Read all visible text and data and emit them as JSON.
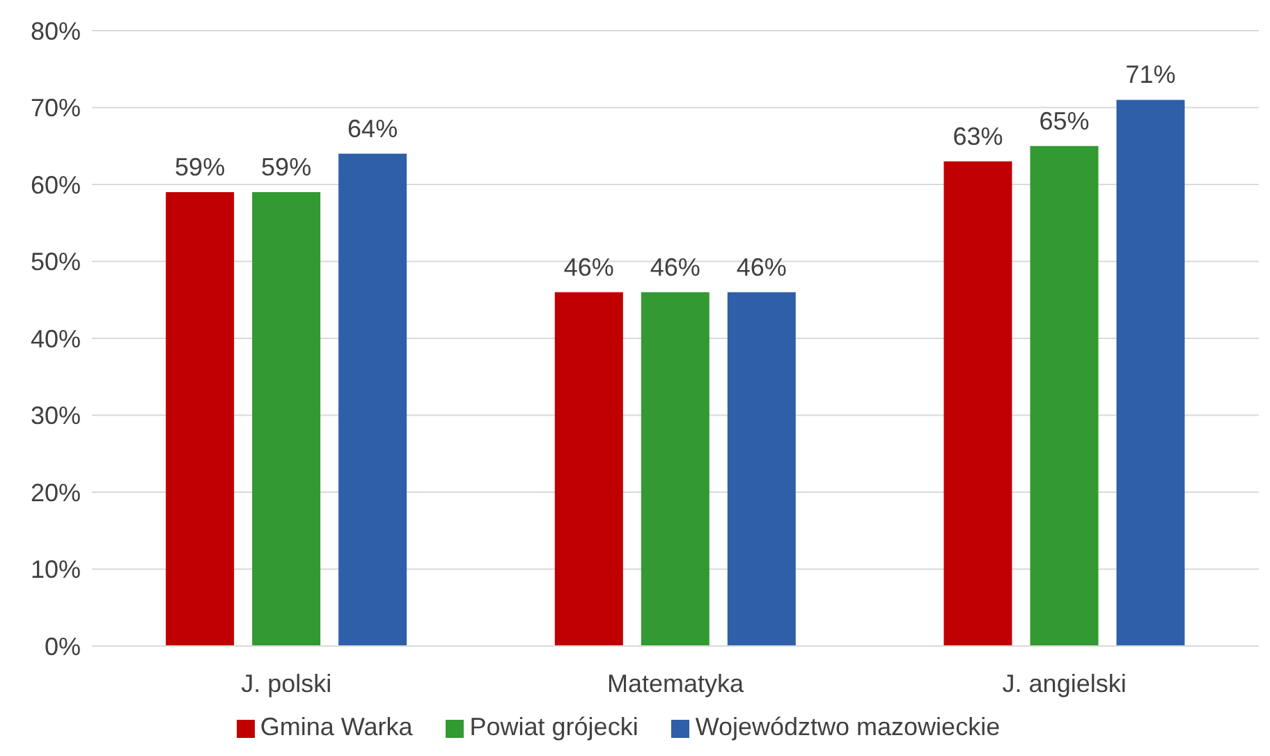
{
  "chart_data": {
    "type": "bar",
    "categories": [
      "J. polski",
      "Matematyka",
      "J. angielski"
    ],
    "series": [
      {
        "name": "Gmina Warka",
        "color": "#c00000",
        "values": [
          59,
          46,
          63
        ],
        "value_labels": [
          "59%",
          "46%",
          "63%"
        ]
      },
      {
        "name": "Powiat grójecki",
        "color": "#339933",
        "values": [
          59,
          46,
          65
        ],
        "value_labels": [
          "59%",
          "46%",
          "65%"
        ]
      },
      {
        "name": "Województwo mazowieckie",
        "color": "#2e5fa8",
        "values": [
          64,
          46,
          71
        ],
        "value_labels": [
          "64%",
          "46%",
          "71%"
        ]
      }
    ],
    "ylim": [
      0,
      80
    ],
    "yticks": [
      {
        "value": 0,
        "label": "0%"
      },
      {
        "value": 10,
        "label": "10%"
      },
      {
        "value": 20,
        "label": "20%"
      },
      {
        "value": 30,
        "label": "30%"
      },
      {
        "value": 40,
        "label": "40%"
      },
      {
        "value": 50,
        "label": "50%"
      },
      {
        "value": 60,
        "label": "60%"
      },
      {
        "value": 70,
        "label": "70%"
      },
      {
        "value": 80,
        "label": "80%"
      }
    ],
    "grid": "y",
    "legend": "bottom"
  }
}
